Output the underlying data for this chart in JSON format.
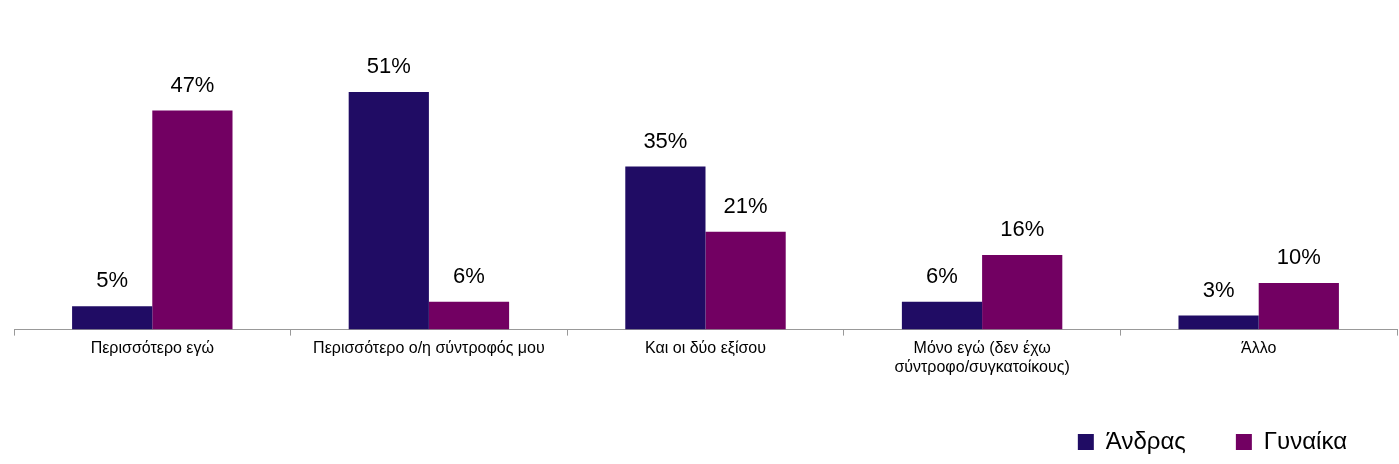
{
  "chart_data": {
    "type": "bar",
    "categories": [
      "Περισσότερο εγώ",
      "Περισσότερο ο/η σύντροφός μου",
      "Και οι δύο εξίσου",
      "Μόνο εγώ (δεν έχω σύντροφο/συγκατοίκους)",
      "Άλλο"
    ],
    "series": [
      {
        "name": "Άνδρας",
        "color": "#200c64",
        "values": [
          5,
          51,
          35,
          6,
          3
        ],
        "value_labels": [
          "5%",
          "51%",
          "35%",
          "6%",
          "3%"
        ]
      },
      {
        "name": "Γυναίκα",
        "color": "#720062",
        "values": [
          47,
          6,
          21,
          16,
          10
        ],
        "value_labels": [
          "47%",
          "6%",
          "21%",
          "16%",
          "10%"
        ]
      }
    ],
    "tick_labels": "x",
    "grid": false,
    "legend": "bottom right"
  }
}
